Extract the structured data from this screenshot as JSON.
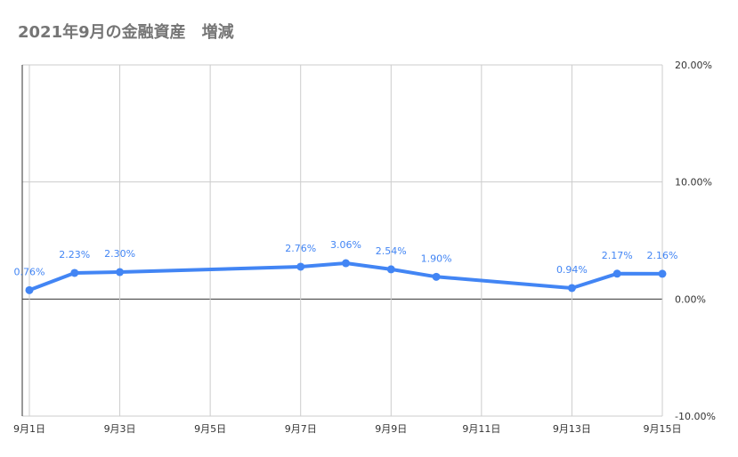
{
  "chart_data": {
    "type": "line",
    "title": "2021年9月の金融資産　増減",
    "x": [
      1,
      2,
      3,
      7,
      8,
      9,
      10,
      13,
      14,
      15
    ],
    "x_tick_values": [
      1,
      3,
      5,
      7,
      9,
      11,
      13,
      15
    ],
    "x_tick_labels": [
      "9月1日",
      "9月3日",
      "9月5日",
      "9月7日",
      "9月9日",
      "9月11日",
      "9月13日",
      "9月15日"
    ],
    "xlim": [
      1,
      15
    ],
    "series": [
      {
        "values": [
          0.76,
          2.23,
          2.3,
          2.76,
          3.06,
          2.54,
          1.9,
          0.94,
          2.17,
          2.16
        ],
        "data_labels": [
          "0.76%",
          "2.23%",
          "2.30%",
          "2.76%",
          "3.06%",
          "2.54%",
          "1.90%",
          "0.94%",
          "2.17%",
          "2.16%"
        ]
      }
    ],
    "y_ticks": [
      20,
      10,
      0,
      -10
    ],
    "y_tick_labels": [
      "20.00%",
      "10.00%",
      "0.00%",
      "-10.00%"
    ],
    "ylim": [
      -10,
      20
    ],
    "y_axis_side": "right",
    "grid": true,
    "legend": "none",
    "colors": {
      "line": "#4285f4",
      "grid": "#cccccc",
      "zero_line": "#333333",
      "title": "#757575"
    }
  }
}
